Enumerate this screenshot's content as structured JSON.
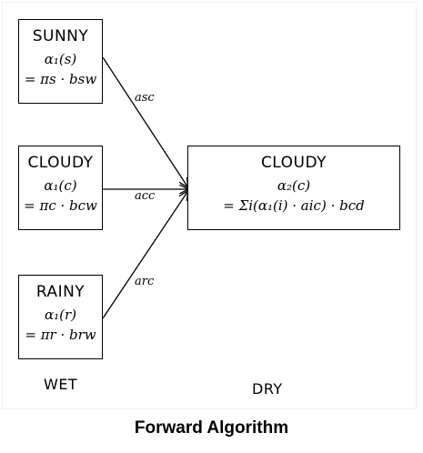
{
  "nodes": {
    "sunny": {
      "name": "SUNNY",
      "alpha": "α₁(s)",
      "formula": "= πs · bsw"
    },
    "cloudy": {
      "name": "CLOUDY",
      "alpha": "α₁(c)",
      "formula": "= πc · bcw"
    },
    "rainy": {
      "name": "RAINY",
      "alpha": "α₁(r)",
      "formula": "= πr · brw"
    },
    "target": {
      "name": "CLOUDY",
      "alpha": "α₂(c)",
      "formula": "= Σi(α₁(i) · aic) · bcd"
    }
  },
  "edges": {
    "sc": "asc",
    "cc": "acc",
    "rc": "arc"
  },
  "columns": {
    "left": "WET",
    "right": "DRY"
  },
  "caption": "Forward Algorithm"
}
